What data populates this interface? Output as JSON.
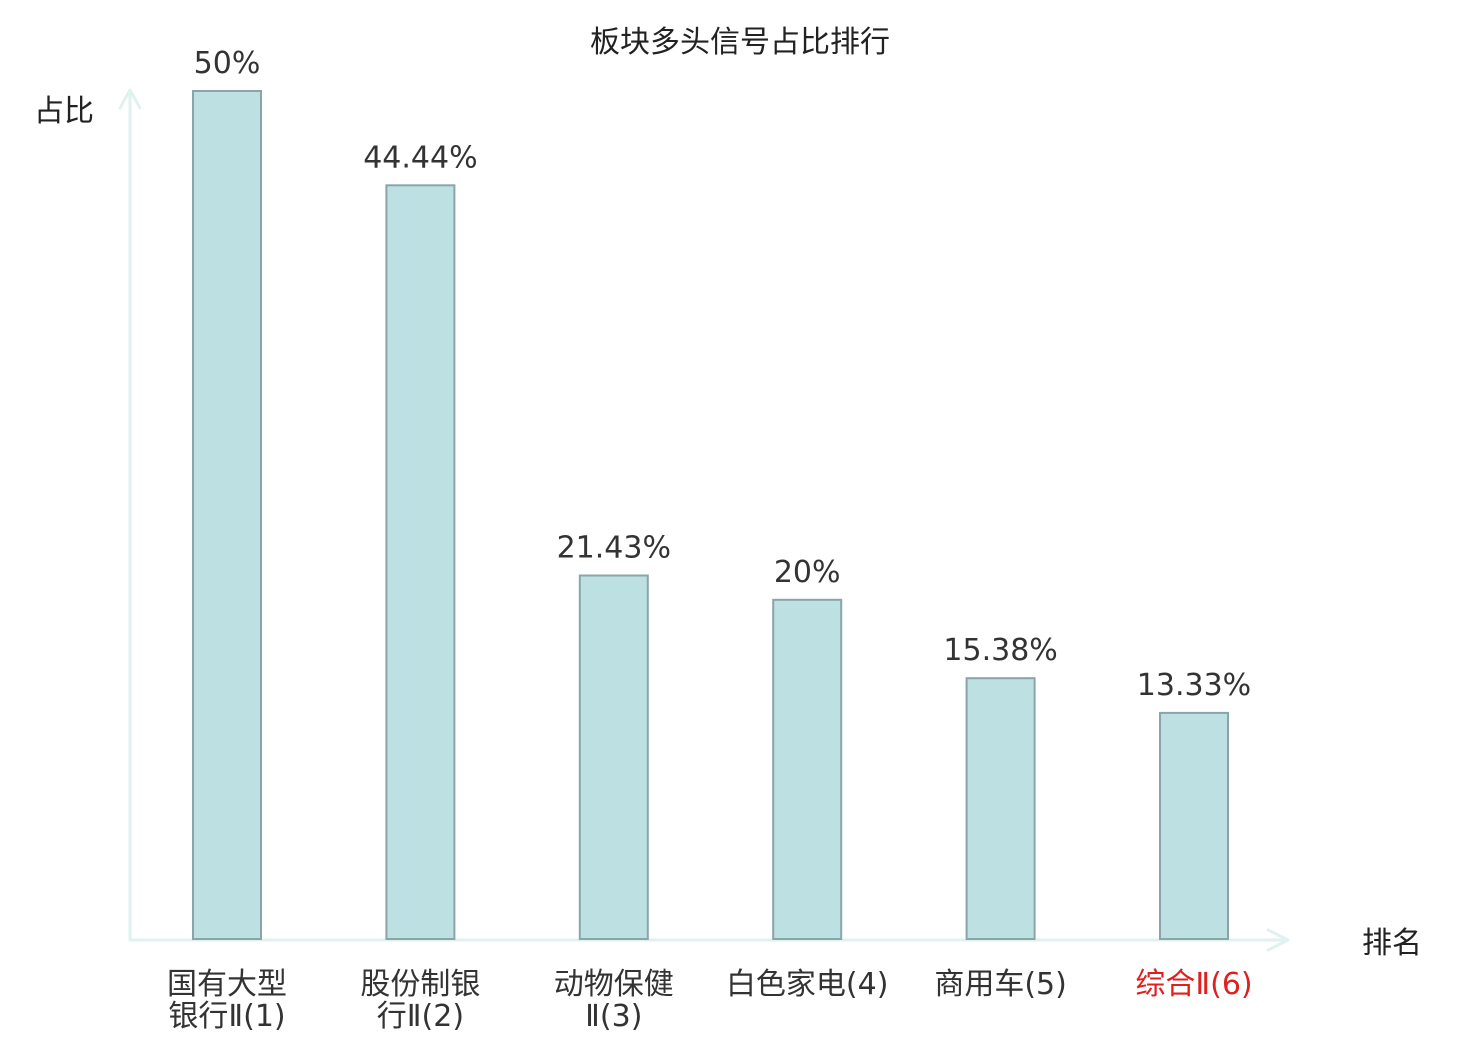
{
  "chart_data": {
    "type": "bar",
    "title": "板块多头信号占比排行",
    "ylabel": "占比",
    "xlabel": "排名",
    "ylim": [
      0,
      50
    ],
    "grid": false,
    "categories": [
      [
        "国有大型",
        "银行Ⅱ(1)"
      ],
      [
        "股份制银",
        "行Ⅱ(2)"
      ],
      [
        "动物保健",
        "Ⅱ(3)"
      ],
      [
        "白色家电(4)"
      ],
      [
        "商用车(5)"
      ],
      [
        "综合Ⅱ(6)"
      ]
    ],
    "values": [
      50,
      44.44,
      21.43,
      20,
      15.38,
      13.33
    ],
    "value_labels": [
      "50%",
      "44.44%",
      "21.43%",
      "20%",
      "15.38%",
      "13.33%"
    ],
    "highlight_index": 5
  },
  "colors": {
    "bar_fill": "#bde0e3",
    "bar_stroke": "#8aa5a8",
    "axis": "#e0f2ef",
    "text": "#333333",
    "highlight_text": "#e02020"
  }
}
